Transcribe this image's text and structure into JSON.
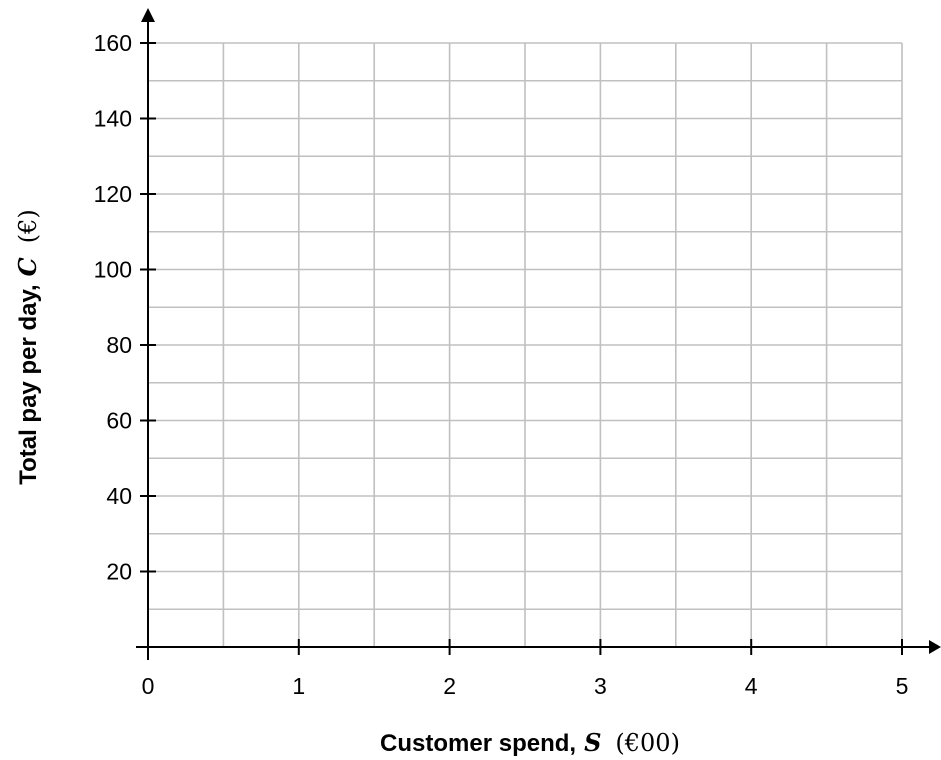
{
  "chart_data": {
    "type": "line",
    "title": "",
    "xlabel": "Customer spend,",
    "xlabel_var": "S",
    "xlabel_unit": "(€00)",
    "ylabel": "Total pay per day,",
    "ylabel_var": "C",
    "ylabel_unit": "(€)",
    "xlim": [
      0,
      5
    ],
    "ylim": [
      0,
      160
    ],
    "x_ticks": [
      0,
      1,
      2,
      3,
      4,
      5
    ],
    "x_tick_labels": [
      "0",
      "1",
      "2",
      "3",
      "4",
      "5"
    ],
    "y_ticks": [
      20,
      40,
      60,
      80,
      100,
      120,
      140,
      160
    ],
    "y_tick_labels": [
      "20",
      "40",
      "60",
      "80",
      "100",
      "120",
      "140",
      "160"
    ],
    "x_minor_step": 0.5,
    "y_minor_step": 10,
    "grid": true,
    "grid_color": "#c0c0c0",
    "axis_color": "#000000",
    "series": []
  }
}
